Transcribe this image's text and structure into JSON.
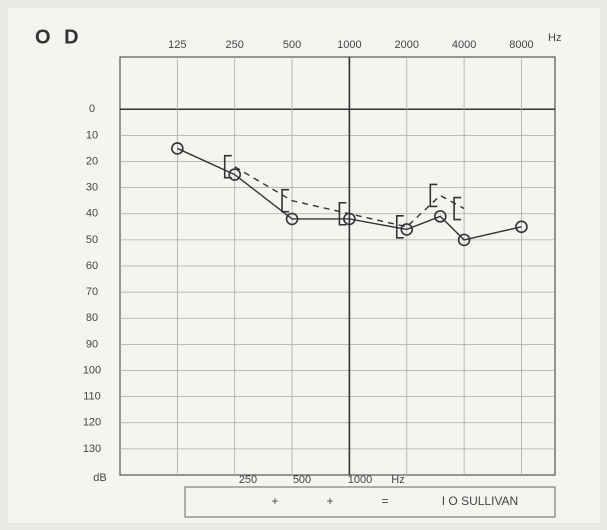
{
  "chart_data": {
    "type": "line",
    "title": "O D",
    "x_unit": "Hz",
    "y_unit": "dB",
    "x": [
      125,
      250,
      500,
      1000,
      2000,
      3000,
      4000,
      8000
    ],
    "xlim": [
      62.5,
      12000
    ],
    "xticks": [
      125,
      250,
      500,
      1000,
      2000,
      4000,
      8000
    ],
    "xscale": "log",
    "ylim": [
      -20,
      140
    ],
    "yticks": [
      0,
      10,
      20,
      30,
      40,
      50,
      60,
      70,
      80,
      90,
      100,
      110,
      120,
      130
    ],
    "y_inverted": true,
    "grid": true,
    "series": [
      {
        "color": "#333333",
        "marker": "circle",
        "linestyle": "solid",
        "values": [
          15,
          25,
          42,
          42,
          46,
          41,
          50,
          45
        ]
      },
      {
        "color": "#333333",
        "marker": "bracket",
        "linestyle": "dashed",
        "values": [
          null,
          22,
          35,
          40,
          45,
          33,
          38,
          null
        ]
      }
    ],
    "footer_labels": [
      "250",
      "500",
      "1000",
      "Hz"
    ],
    "footer_box": [
      "+",
      "+",
      "=",
      "I O SULLIVAN"
    ]
  }
}
